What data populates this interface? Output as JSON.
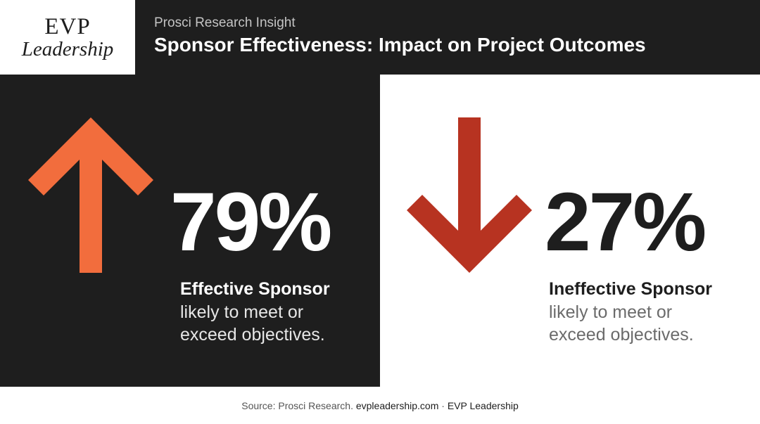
{
  "brand": {
    "logo_line1": "EVP",
    "logo_line2": "Leadership"
  },
  "header": {
    "kicker": "Prosci Research Insight",
    "title": "Sponsor Effectiveness: Impact on Project Outcomes"
  },
  "colors": {
    "dark_background": "#1e1e1e",
    "up_arrow": "#f26d3d",
    "down_arrow": "#b73321"
  },
  "left_panel": {
    "icon": "arrow-up-icon",
    "value": "79%",
    "label": "Effective Sponsor",
    "desc_line1": "likely to meet or",
    "desc_line2": "exceed objectives."
  },
  "right_panel": {
    "icon": "arrow-down-icon",
    "value": "27%",
    "label": "Ineffective Sponsor",
    "desc_line1": "likely to meet or",
    "desc_line2": "exceed objectives."
  },
  "footer": {
    "source": "Source: Prosci Research.",
    "site": "evpleadership.com",
    "separator": "·",
    "brand": "EVP Leadership"
  }
}
